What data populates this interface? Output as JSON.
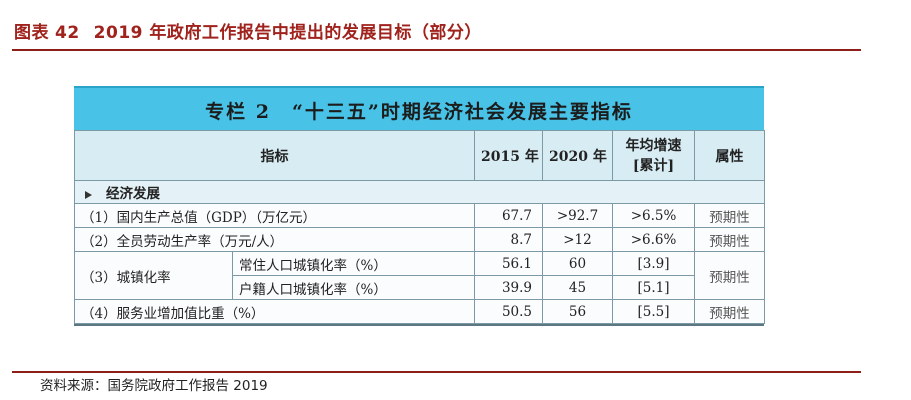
{
  "figure": {
    "label": "图表",
    "number": "42",
    "title": "2019 年政府工作报告中提出的发展目标（部分）"
  },
  "table": {
    "banner": "专栏 2　“十三五”时期经济社会发展主要指标",
    "headers": {
      "indicator": "指标",
      "y2015": "2015 年",
      "y2020": "2020 年",
      "growth_line1": "年均增速",
      "growth_line2": "[累计]",
      "attribute": "属性"
    },
    "section": "经济发展",
    "rows": [
      {
        "name": "（1）国内生产总值（GDP）（万亿元）",
        "v2015": "67.7",
        "v2020": ">92.7",
        "growth": ">6.5%",
        "attr": "预期性"
      },
      {
        "name": "（2）全员劳动生产率（万元/人）",
        "v2015": "8.7",
        "v2020": ">12",
        "growth": ">6.6%",
        "attr": "预期性"
      },
      {
        "group": "（3）城镇化率",
        "attr": "预期性",
        "subrows": [
          {
            "name": "常住人口城镇化率（%）",
            "v2015": "56.1",
            "v2020": "60",
            "growth": "[3.9]"
          },
          {
            "name": "户籍人口城镇化率（%）",
            "v2015": "39.9",
            "v2020": "45",
            "growth": "[5.1]"
          }
        ]
      },
      {
        "name": "（4）服务业增加值比重（%）",
        "v2015": "50.5",
        "v2020": "56",
        "growth": "[5.5]",
        "attr": "预期性"
      }
    ]
  },
  "source": "资料来源：国务院政府工作报告 2019",
  "colors": {
    "title_red": "#a0221c",
    "banner_blue": "#48c2e6",
    "header_bg": "#d8ecf3"
  }
}
